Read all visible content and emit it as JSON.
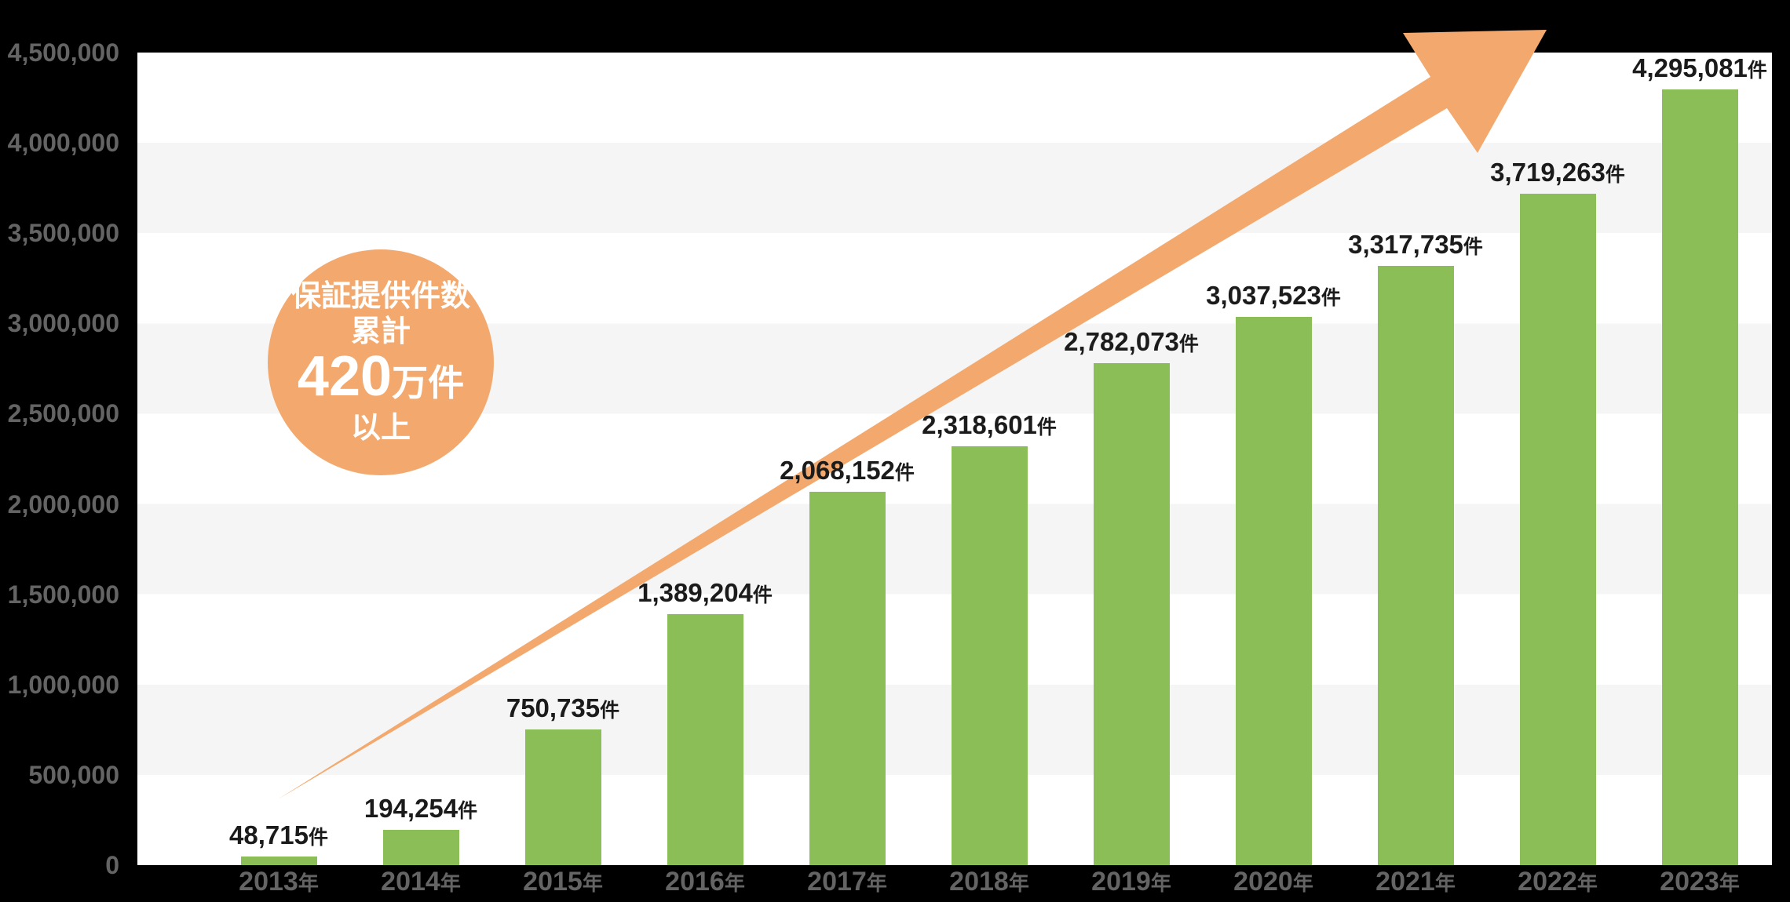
{
  "chart_data": {
    "type": "bar",
    "title": "",
    "xlabel": "",
    "ylabel": "",
    "categories": [
      "2013",
      "2014",
      "2015",
      "2016",
      "2017",
      "2018",
      "2019",
      "2020",
      "2021",
      "2022",
      "2023"
    ],
    "category_suffix": "年",
    "values": [
      48715,
      194254,
      750735,
      1389204,
      2068152,
      2318601,
      2782073,
      3037523,
      3317735,
      3719263,
      4295081
    ],
    "value_labels": [
      "48,715",
      "194,254",
      "750,735",
      "1,389,204",
      "2,068,152",
      "2,318,601",
      "2,782,073",
      "3,037,523",
      "3,317,735",
      "3,719,263",
      "4,295,081"
    ],
    "value_suffix": "件",
    "ylim": [
      0,
      4500000
    ],
    "ytick_step": 500000,
    "ytick_labels": [
      "0",
      "500,000",
      "1,000,000",
      "1,500,000",
      "2,000,000",
      "2,500,000",
      "3,000,000",
      "3,500,000",
      "4,000,000",
      "4,500,000"
    ],
    "grid": "alternating horizontal bands every 500,000",
    "legend": "none",
    "annotations": [
      "upward diagonal trend arrow from 2013 bar to top right"
    ]
  },
  "badge": {
    "line1": "保証提供件数",
    "line2": "累計",
    "big_number": "420",
    "big_unit": "万件",
    "line4": "以上"
  },
  "colors": {
    "background": "#000000",
    "plot_white": "#ffffff",
    "band_gray": "#f5f5f5",
    "bar_green": "#8cbe57",
    "accent_orange": "#f3a96e",
    "axis_label_gray": "#646464",
    "value_label_black": "#1b1b1b",
    "badge_text_white": "#ffffff"
  }
}
